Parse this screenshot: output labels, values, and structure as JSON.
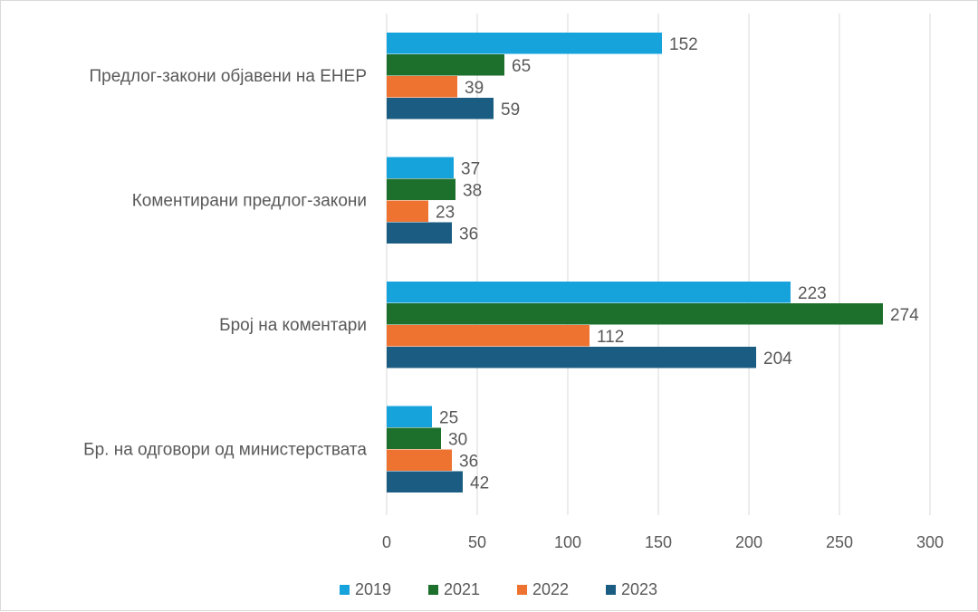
{
  "chart_data": {
    "type": "bar",
    "orientation": "horizontal",
    "title": "",
    "xlabel": "",
    "ylabel": "",
    "categories": [
      "Предлог-закони објавени на ЕНЕР",
      "Коментирани предлог-закони",
      "Број на коментари",
      "Бр. на одговори од министерствата"
    ],
    "series": [
      {
        "name": "2019",
        "color": "#16a3dc",
        "values": [
          152,
          37,
          223,
          25
        ]
      },
      {
        "name": "2021",
        "color": "#1d6f2c",
        "values": [
          65,
          38,
          274,
          30
        ]
      },
      {
        "name": "2022",
        "color": "#ee7330",
        "values": [
          39,
          23,
          112,
          36
        ]
      },
      {
        "name": "2023",
        "color": "#1b5d82",
        "values": [
          59,
          36,
          204,
          42
        ]
      }
    ],
    "xlim": [
      0,
      300
    ],
    "xticks": [
      0,
      50,
      100,
      150,
      200,
      250,
      300
    ],
    "grid": true,
    "legend_position": "bottom",
    "data_labels": true
  }
}
